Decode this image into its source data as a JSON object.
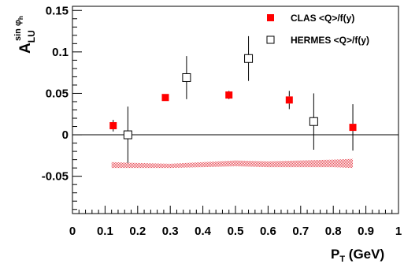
{
  "chart_data": {
    "type": "scatter",
    "xlabel": {
      "main": "P",
      "sub": "T",
      "rest": " (GeV)"
    },
    "ylabel": {
      "main": "A",
      "sub": "LU",
      "sup": "sin φ",
      "supsub": "h"
    },
    "xlim": [
      0,
      1.0
    ],
    "ylim": [
      -0.095,
      0.155
    ],
    "x_ticks": [
      {
        "v": 0,
        "label": "0"
      },
      {
        "v": 0.1,
        "label": "0.1"
      },
      {
        "v": 0.2,
        "label": "0.2"
      },
      {
        "v": 0.3,
        "label": "0.3"
      },
      {
        "v": 0.4,
        "label": "0.4"
      },
      {
        "v": 0.5,
        "label": "0.5"
      },
      {
        "v": 0.6,
        "label": "0.6"
      },
      {
        "v": 0.7,
        "label": "0.7"
      },
      {
        "v": 0.8,
        "label": "0.8"
      },
      {
        "v": 0.9,
        "label": "0.9"
      },
      {
        "v": 1.0,
        "label": "1"
      }
    ],
    "y_ticks": [
      {
        "v": -0.05,
        "label": "-0.05"
      },
      {
        "v": 0,
        "label": "0"
      },
      {
        "v": 0.05,
        "label": "0.05"
      },
      {
        "v": 0.1,
        "label": "0.1"
      },
      {
        "v": 0.15,
        "label": "0.15"
      }
    ],
    "zero_line": true,
    "series": [
      {
        "name": "CLAS <Q>/f(y)",
        "marker": "filled-square",
        "color": "#ff0000",
        "points": [
          {
            "x": 0.125,
            "y": 0.011,
            "err": 0.007
          },
          {
            "x": 0.285,
            "y": 0.045,
            "err": 0.004
          },
          {
            "x": 0.48,
            "y": 0.048,
            "err": 0.005
          },
          {
            "x": 0.665,
            "y": 0.042,
            "err": 0.011
          },
          {
            "x": 0.86,
            "y": 0.009,
            "err": 0.028
          }
        ]
      },
      {
        "name": "HERMES <Q>/f(y)",
        "marker": "open-square",
        "color": "#000000",
        "points": [
          {
            "x": 0.17,
            "y": 0.0,
            "err": 0.034
          },
          {
            "x": 0.35,
            "y": 0.069,
            "err": 0.026
          },
          {
            "x": 0.54,
            "y": 0.092,
            "err": 0.027
          },
          {
            "x": 0.74,
            "y": 0.016,
            "err": 0.034
          }
        ]
      }
    ],
    "systematic_band": {
      "color": "#e8505a",
      "x": [
        0.12,
        0.2,
        0.3,
        0.4,
        0.5,
        0.6,
        0.7,
        0.8,
        0.86
      ],
      "y_low": [
        -0.04,
        -0.04,
        -0.04,
        -0.039,
        -0.038,
        -0.039,
        -0.039,
        -0.039,
        -0.04
      ],
      "y_high": [
        -0.033,
        -0.034,
        -0.035,
        -0.033,
        -0.031,
        -0.032,
        -0.031,
        -0.03,
        -0.029
      ]
    },
    "legend_position": "top-right"
  }
}
